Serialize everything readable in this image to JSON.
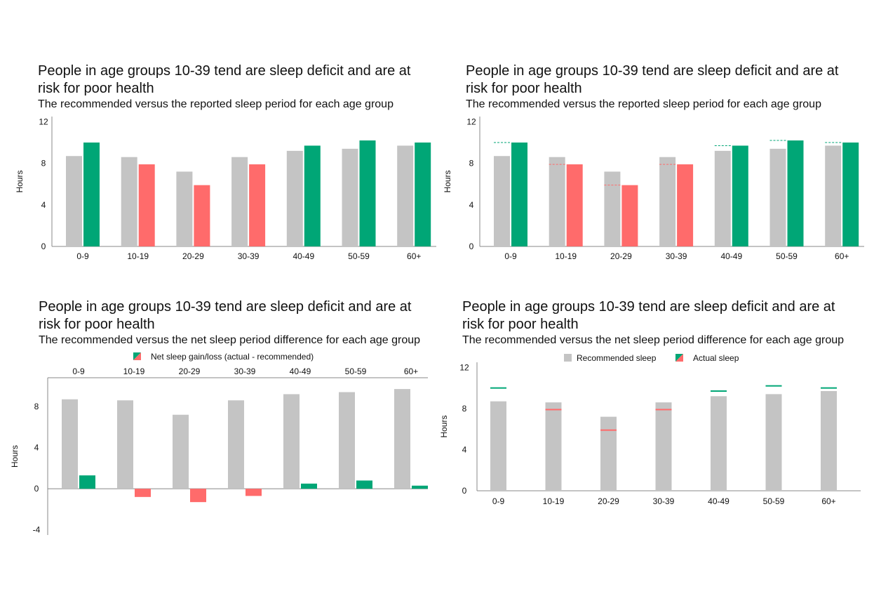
{
  "colors": {
    "recommended": "#c4c4c4",
    "surplus": "#00a676",
    "deficit": "#ff6b6b",
    "axis": "#999999"
  },
  "chart_data": [
    {
      "type": "bar",
      "title": "People in age groups 10-39 tend are sleep deficit and are at risk for poor health",
      "subtitle": "The recommended versus the reported sleep period for each age group",
      "categories": [
        "0-9",
        "10-19",
        "20-29",
        "30-39",
        "40-49",
        "50-59",
        "60+"
      ],
      "series": [
        {
          "values": [
            8.7,
            8.6,
            7.2,
            8.6,
            9.2,
            9.4,
            9.7
          ]
        },
        {
          "values": [
            10.0,
            7.9,
            5.9,
            7.9,
            9.7,
            10.2,
            10.0
          ]
        }
      ],
      "ylabel": "Hours",
      "yticks": [
        "0",
        "4",
        "8",
        "12"
      ],
      "ylim": [
        0,
        12.5
      ]
    },
    {
      "type": "bar",
      "title": "People in age groups 10-39 tend are sleep deficit and are at risk for poor health",
      "subtitle": "The recommended versus the reported sleep period for each age group",
      "categories": [
        "0-9",
        "10-19",
        "20-29",
        "30-39",
        "40-49",
        "50-59",
        "60+"
      ],
      "series": [
        {
          "values": [
            8.7,
            8.6,
            7.2,
            8.6,
            9.2,
            9.4,
            9.7
          ]
        },
        {
          "values": [
            10.0,
            7.9,
            5.9,
            7.9,
            9.7,
            10.2,
            10.0
          ]
        }
      ],
      "ylabel": "Hours",
      "yticks": [
        "0",
        "4",
        "8",
        "12"
      ],
      "ylim": [
        0,
        12.5
      ]
    },
    {
      "type": "bar",
      "title": "People in age groups 10-39 tend are sleep deficit and are at risk for poor health",
      "subtitle": "The recommended versus the net sleep period difference for each age group",
      "legend": [
        "Net sleep gain/loss (actual - recommended)"
      ],
      "categories": [
        "0-9",
        "10-19",
        "20-29",
        "30-39",
        "40-49",
        "50-59",
        "60+"
      ],
      "series": [
        {
          "values": [
            8.7,
            8.6,
            7.2,
            8.6,
            9.2,
            9.4,
            9.7
          ]
        },
        {
          "name": "Net sleep gain/loss (actual - recommended)",
          "values": [
            1.3,
            -0.8,
            -1.3,
            -0.7,
            0.5,
            0.8,
            0.3
          ]
        }
      ],
      "ylabel": "Hours",
      "yticks": [
        "-4",
        "0",
        "4",
        "8"
      ],
      "ylim": [
        -4.5,
        10.8
      ]
    },
    {
      "type": "bar",
      "title": "People in age groups 10-39 tend are sleep deficit and are at risk for poor health",
      "subtitle": "The recommended versus the net sleep period difference for each age group",
      "legend": [
        "Recommended sleep",
        "Actual sleep"
      ],
      "categories": [
        "0-9",
        "10-19",
        "20-29",
        "30-39",
        "40-49",
        "50-59",
        "60+"
      ],
      "series": [
        {
          "name": "Recommended sleep",
          "values": [
            8.7,
            8.6,
            7.2,
            8.6,
            9.2,
            9.4,
            9.7
          ]
        },
        {
          "name": "Actual sleep",
          "values": [
            10.0,
            7.9,
            5.9,
            7.9,
            9.7,
            10.2,
            10.0
          ]
        }
      ],
      "ylabel": "Hours",
      "yticks": [
        "0",
        "4",
        "8",
        "12"
      ],
      "ylim": [
        0,
        12.5
      ]
    }
  ]
}
